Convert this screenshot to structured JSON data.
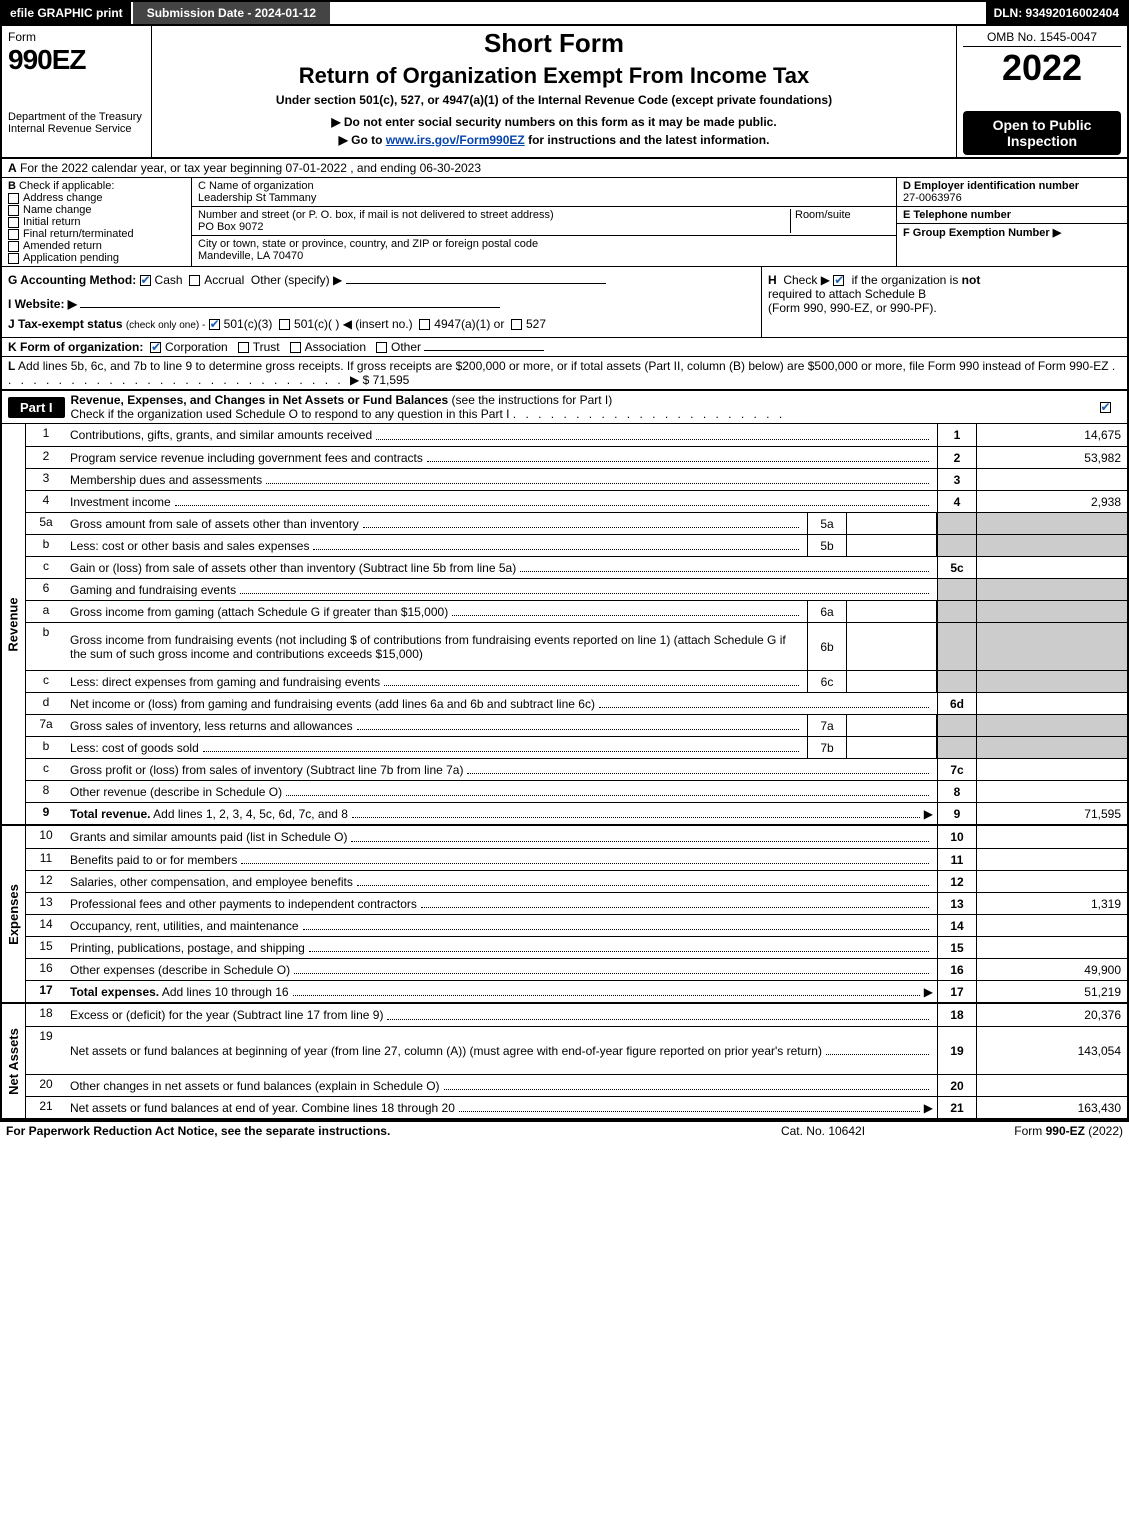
{
  "topbar": {
    "efile": "efile GRAPHIC print",
    "submission": "Submission Date - 2024-01-12",
    "dln": "DLN: 93492016002404"
  },
  "header": {
    "form_label": "Form",
    "form_number": "990EZ",
    "dept1": "Department of the Treasury",
    "dept2": "Internal Revenue Service",
    "short_form": "Short Form",
    "return_title": "Return of Organization Exempt From Income Tax",
    "subtitle": "Under section 501(c), 527, or 4947(a)(1) of the Internal Revenue Code (except private foundations)",
    "arrow1": "▶ Do not enter social security numbers on this form as it may be made public.",
    "arrow2_prefix": "▶ Go to ",
    "arrow2_link": "www.irs.gov/Form990EZ",
    "arrow2_suffix": " for instructions and the latest information.",
    "omb": "OMB No. 1545-0047",
    "year": "2022",
    "open_public": "Open to Public Inspection"
  },
  "sectA": {
    "label": "A",
    "text": "For the 2022 calendar year, or tax year beginning 07-01-2022 , and ending 06-30-2023"
  },
  "colB": {
    "label": "B",
    "check_if": "Check if applicable:",
    "items": [
      "Address change",
      "Name change",
      "Initial return",
      "Final return/terminated",
      "Amended return",
      "Application pending"
    ]
  },
  "colC": {
    "name_label": "C Name of organization",
    "name": "Leadership St Tammany",
    "street_label": "Number and street (or P. O. box, if mail is not delivered to street address)",
    "street": "PO Box 9072",
    "room_label": "Room/suite",
    "city_label": "City or town, state or province, country, and ZIP or foreign postal code",
    "city": "Mandeville, LA   70470"
  },
  "colD": {
    "d_label": "D Employer identification number",
    "ein": "27-0063976",
    "e_label": "E Telephone number",
    "phone": "",
    "f_label": "F Group Exemption Number    ▶"
  },
  "rowG": {
    "label": "G Accounting Method:",
    "cash": "Cash",
    "accrual": "Accrual",
    "other": "Other (specify) ▶"
  },
  "rowI": {
    "label": "I Website: ▶"
  },
  "rowJ": {
    "label": "J Tax-exempt status",
    "suffix": "(check only one) -",
    "opt1": "501(c)(3)",
    "opt2": "501(c)(  ) ◀ (insert no.)",
    "opt3": "4947(a)(1) or",
    "opt4": "527"
  },
  "rowH": {
    "label": "H",
    "text1": "Check ▶",
    "text2": "if the organization is ",
    "not": "not",
    "text3": "required to attach Schedule B",
    "text4": "(Form 990, 990-EZ, or 990-PF)."
  },
  "rowK": {
    "label": "K Form of organization:",
    "corp": "Corporation",
    "trust": "Trust",
    "assoc": "Association",
    "other": "Other"
  },
  "rowL": {
    "label": "L",
    "text": "Add lines 5b, 6c, and 7b to line 9 to determine gross receipts. If gross receipts are $200,000 or more, or if total assets (Part II, column (B) below) are $500,000 or more, file Form 990 instead of Form 990-EZ",
    "arrow": "▶ $",
    "value": "71,595"
  },
  "partI": {
    "label": "Part I",
    "title": "Revenue, Expenses, and Changes in Net Assets or Fund Balances",
    "title_suffix": "(see the instructions for Part I)",
    "check_text": "Check if the organization used Schedule O to respond to any question in this Part I"
  },
  "sections": {
    "revenue": "Revenue",
    "expenses": "Expenses",
    "netassets": "Net Assets"
  },
  "lines": [
    {
      "num": "1",
      "desc": "Contributions, gifts, grants, and similar amounts received",
      "rnum": "1",
      "val": "14,675"
    },
    {
      "num": "2",
      "desc": "Program service revenue including government fees and contracts",
      "rnum": "2",
      "val": "53,982"
    },
    {
      "num": "3",
      "desc": "Membership dues and assessments",
      "rnum": "3",
      "val": ""
    },
    {
      "num": "4",
      "desc": "Investment income",
      "rnum": "4",
      "val": "2,938"
    },
    {
      "num": "5a",
      "desc": "Gross amount from sale of assets other than inventory",
      "mid": "5a",
      "midval": "",
      "shaded": true
    },
    {
      "num": "b",
      "desc": "Less: cost or other basis and sales expenses",
      "mid": "5b",
      "midval": "",
      "shaded": true
    },
    {
      "num": "c",
      "desc": "Gain or (loss) from sale of assets other than inventory (Subtract line 5b from line 5a)",
      "rnum": "5c",
      "val": ""
    },
    {
      "num": "6",
      "desc": "Gaming and fundraising events",
      "shaded": true
    },
    {
      "num": "a",
      "desc": "Gross income from gaming (attach Schedule G if greater than $15,000)",
      "mid": "6a",
      "midval": "",
      "shaded": true
    },
    {
      "num": "b",
      "desc": "Gross income from fundraising events (not including $                of contributions from fundraising events reported on line 1) (attach Schedule G if the sum of such gross income and contributions exceeds $15,000)",
      "mid": "6b",
      "midval": "",
      "shaded": true,
      "tall": true
    },
    {
      "num": "c",
      "desc": "Less: direct expenses from gaming and fundraising events",
      "mid": "6c",
      "midval": "",
      "shaded": true
    },
    {
      "num": "d",
      "desc": "Net income or (loss) from gaming and fundraising events (add lines 6a and 6b and subtract line 6c)",
      "rnum": "6d",
      "val": ""
    },
    {
      "num": "7a",
      "desc": "Gross sales of inventory, less returns and allowances",
      "mid": "7a",
      "midval": "",
      "shaded": true
    },
    {
      "num": "b",
      "desc": "Less: cost of goods sold",
      "mid": "7b",
      "midval": "",
      "shaded": true
    },
    {
      "num": "c",
      "desc": "Gross profit or (loss) from sales of inventory (Subtract line 7b from line 7a)",
      "rnum": "7c",
      "val": ""
    },
    {
      "num": "8",
      "desc": "Other revenue (describe in Schedule O)",
      "rnum": "8",
      "val": ""
    },
    {
      "num": "9",
      "desc": "Total revenue. Add lines 1, 2, 3, 4, 5c, 6d, 7c, and 8",
      "rnum": "9",
      "val": "71,595",
      "bold": true,
      "arrow": true
    }
  ],
  "exp_lines": [
    {
      "num": "10",
      "desc": "Grants and similar amounts paid (list in Schedule O)",
      "rnum": "10",
      "val": ""
    },
    {
      "num": "11",
      "desc": "Benefits paid to or for members",
      "rnum": "11",
      "val": ""
    },
    {
      "num": "12",
      "desc": "Salaries, other compensation, and employee benefits",
      "rnum": "12",
      "val": ""
    },
    {
      "num": "13",
      "desc": "Professional fees and other payments to independent contractors",
      "rnum": "13",
      "val": "1,319"
    },
    {
      "num": "14",
      "desc": "Occupancy, rent, utilities, and maintenance",
      "rnum": "14",
      "val": ""
    },
    {
      "num": "15",
      "desc": "Printing, publications, postage, and shipping",
      "rnum": "15",
      "val": ""
    },
    {
      "num": "16",
      "desc": "Other expenses (describe in Schedule O)",
      "rnum": "16",
      "val": "49,900"
    },
    {
      "num": "17",
      "desc": "Total expenses. Add lines 10 through 16",
      "rnum": "17",
      "val": "51,219",
      "bold": true,
      "arrow": true
    }
  ],
  "net_lines": [
    {
      "num": "18",
      "desc": "Excess or (deficit) for the year (Subtract line 17 from line 9)",
      "rnum": "18",
      "val": "20,376"
    },
    {
      "num": "19",
      "desc": "Net assets or fund balances at beginning of year (from line 27, column (A)) (must agree with end-of-year figure reported on prior year's return)",
      "rnum": "19",
      "val": "143,054",
      "tall": true
    },
    {
      "num": "20",
      "desc": "Other changes in net assets or fund balances (explain in Schedule O)",
      "rnum": "20",
      "val": ""
    },
    {
      "num": "21",
      "desc": "Net assets or fund balances at end of year. Combine lines 18 through 20",
      "rnum": "21",
      "val": "163,430",
      "arrow": true
    }
  ],
  "footer": {
    "left": "For Paperwork Reduction Act Notice, see the separate instructions.",
    "mid": "Cat. No. 10642I",
    "right_prefix": "Form ",
    "right_form": "990-EZ",
    "right_suffix": " (2022)"
  }
}
